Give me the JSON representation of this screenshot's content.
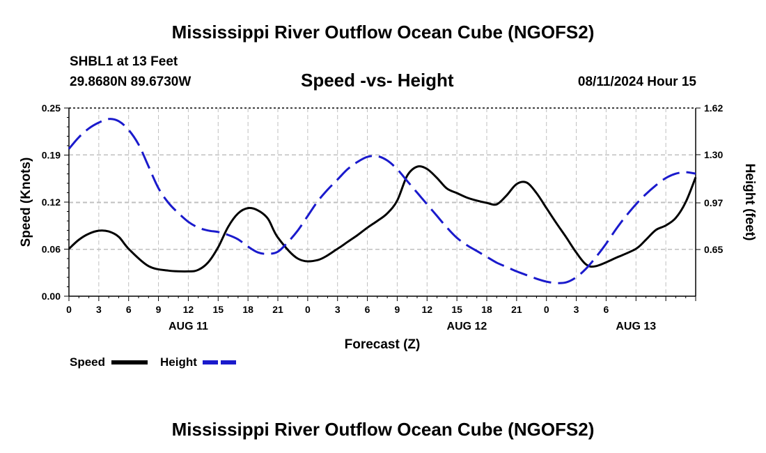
{
  "header": {
    "title": "Mississippi River Outflow Ocean Cube (NGOFS2)",
    "station": "SHBL1 at 13 Feet",
    "coords": "29.8680N  89.6730W",
    "subtitle": "Speed -vs- Height",
    "datetime": "08/11/2024 Hour 15"
  },
  "footer": {
    "title": "Mississippi River Outflow Ocean Cube (NGOFS2)"
  },
  "legend": {
    "speed_label": "Speed",
    "height_label": "Height",
    "speed_color": "#000000",
    "height_color": "#1a1acc"
  },
  "chart_data": {
    "type": "line",
    "xlabel": "Forecast (Z)",
    "ylabel": "Speed (Knots)",
    "ylabel_right": "Height (feet)",
    "x_range_hours": [
      0,
      63
    ],
    "x_tick_labels": [
      "0",
      "3",
      "6",
      "9",
      "12",
      "15",
      "18",
      "21",
      "0",
      "3",
      "6",
      "9",
      "12",
      "15",
      "18",
      "21",
      "0",
      "3",
      "6"
    ],
    "date_labels": [
      {
        "label": "AUG 11",
        "hour": 12
      },
      {
        "label": "AUG 12",
        "hour": 40
      },
      {
        "label": "AUG 13",
        "hour": 57
      }
    ],
    "ylim_left": [
      0,
      0.25
    ],
    "yticks_left": [
      "0.00",
      "0.06",
      "0.12",
      "0.19",
      "0.25"
    ],
    "yticks_left_values": [
      0,
      0.0625,
      0.125,
      0.1875,
      0.25
    ],
    "ylim_right": [
      0.33,
      1.62
    ],
    "yticks_right": [
      "0.65",
      "0.97",
      "1.30",
      "1.62"
    ],
    "yticks_right_values": [
      0.65,
      0.97,
      1.3,
      1.62
    ],
    "series": [
      {
        "name": "Speed",
        "axis": "left",
        "color": "#000000",
        "dash": "solid",
        "x": [
          0,
          1,
          2,
          3,
          4,
          5,
          6,
          8,
          10,
          12,
          13,
          14,
          15,
          16,
          17,
          18,
          19,
          20,
          21,
          23,
          25,
          27,
          28,
          29,
          30,
          31,
          32,
          33,
          34,
          35,
          36,
          37,
          38,
          39,
          40,
          41,
          42,
          43,
          44,
          45,
          46,
          47,
          48,
          49,
          50,
          51,
          52,
          53,
          55,
          57,
          58,
          59,
          60,
          61,
          62,
          63
        ],
        "values": [
          0.063,
          0.075,
          0.083,
          0.087,
          0.086,
          0.079,
          0.063,
          0.04,
          0.034,
          0.033,
          0.035,
          0.045,
          0.065,
          0.092,
          0.11,
          0.117,
          0.114,
          0.103,
          0.078,
          0.05,
          0.048,
          0.063,
          0.072,
          0.081,
          0.091,
          0.1,
          0.11,
          0.127,
          0.16,
          0.172,
          0.169,
          0.157,
          0.143,
          0.137,
          0.131,
          0.127,
          0.124,
          0.122,
          0.134,
          0.149,
          0.151,
          0.137,
          0.117,
          0.097,
          0.078,
          0.058,
          0.042,
          0.04,
          0.051,
          0.063,
          0.075,
          0.088,
          0.094,
          0.104,
          0.125,
          0.158
        ]
      },
      {
        "name": "Height",
        "axis": "right",
        "color": "#1a1acc",
        "dash": "dashed",
        "x": [
          0,
          1,
          2,
          3,
          4,
          5,
          6,
          7,
          8,
          9,
          10,
          11,
          12,
          13,
          14,
          15,
          16,
          17,
          18,
          19,
          20,
          21,
          22,
          23,
          24,
          25,
          26,
          27,
          28,
          29,
          30,
          31,
          32,
          33,
          34,
          35,
          36,
          37,
          38,
          39,
          40,
          41,
          42,
          43,
          44,
          45,
          46,
          47,
          48,
          49,
          50,
          51,
          52,
          53,
          54,
          55,
          56,
          57,
          58,
          59,
          60,
          61,
          62,
          63
        ],
        "values": [
          1.34,
          1.42,
          1.48,
          1.52,
          1.545,
          1.53,
          1.47,
          1.37,
          1.22,
          1.07,
          0.97,
          0.9,
          0.84,
          0.8,
          0.78,
          0.77,
          0.75,
          0.72,
          0.67,
          0.63,
          0.62,
          0.635,
          0.7,
          0.78,
          0.88,
          0.98,
          1.06,
          1.13,
          1.2,
          1.25,
          1.285,
          1.29,
          1.26,
          1.2,
          1.12,
          1.04,
          0.96,
          0.88,
          0.8,
          0.73,
          0.68,
          0.64,
          0.6,
          0.56,
          0.53,
          0.5,
          0.475,
          0.45,
          0.43,
          0.42,
          0.425,
          0.46,
          0.52,
          0.6,
          0.69,
          0.79,
          0.88,
          0.96,
          1.03,
          1.09,
          1.14,
          1.17,
          1.18,
          1.17
        ]
      }
    ]
  }
}
